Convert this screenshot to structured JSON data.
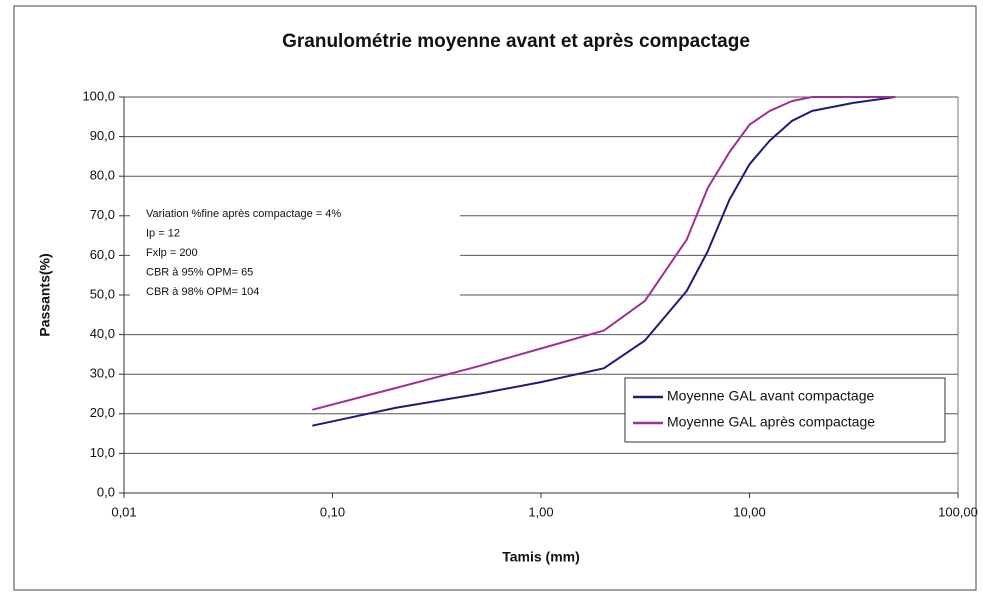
{
  "chart_data": {
    "type": "line",
    "title": "Granulométrie moyenne avant et après compactage",
    "x_label": "Tamis (mm)",
    "y_label": "Passants(%)",
    "log_x": true,
    "grid": true,
    "legend": "lower right",
    "x": [
      0.08,
      0.2,
      0.5,
      1,
      2,
      3.15,
      5,
      6.3,
      8,
      10,
      12.5,
      16,
      20,
      31.5,
      50
    ],
    "series": [
      {
        "name": "Moyenne GAL avant compactage",
        "color": "#1c1c78",
        "values": [
          17,
          21.5,
          25,
          28,
          31.5,
          38.5,
          51,
          61,
          74,
          83,
          89,
          94,
          96.5,
          98.5,
          100
        ]
      },
      {
        "name": "Moyenne GAL après compactage",
        "color": "#a0308f",
        "values": [
          21,
          26.5,
          32,
          36.5,
          41,
          48.5,
          64,
          77,
          86,
          93,
          96.5,
          99,
          100,
          100,
          100
        ]
      }
    ],
    "xlim": [
      0.01,
      100
    ],
    "xticks": [
      {
        "value": 0.01,
        "label": "0,01"
      },
      {
        "value": 0.1,
        "label": "0,10"
      },
      {
        "value": 1,
        "label": "1,00"
      },
      {
        "value": 10,
        "label": "10,00"
      },
      {
        "value": 100,
        "label": "100,00"
      }
    ],
    "ylim": [
      0,
      100
    ],
    "yticks": [
      {
        "value": 0,
        "label": "0,0"
      },
      {
        "value": 10,
        "label": "10,0"
      },
      {
        "value": 20,
        "label": "20,0"
      },
      {
        "value": 30,
        "label": "30,0"
      },
      {
        "value": 40,
        "label": "40,0"
      },
      {
        "value": 50,
        "label": "50,0"
      },
      {
        "value": 60,
        "label": "60,0"
      },
      {
        "value": 70,
        "label": "70,0"
      },
      {
        "value": 80,
        "label": "80,0"
      },
      {
        "value": 90,
        "label": "90,0"
      },
      {
        "value": 100,
        "label": "100,0"
      }
    ],
    "annotations": [
      "Variation %fine après compactage = 4%",
      "Ip = 12",
      "Fxlp = 200",
      "CBR à 95% OPM= 65",
      "CBR à 98% OPM= 104"
    ]
  }
}
